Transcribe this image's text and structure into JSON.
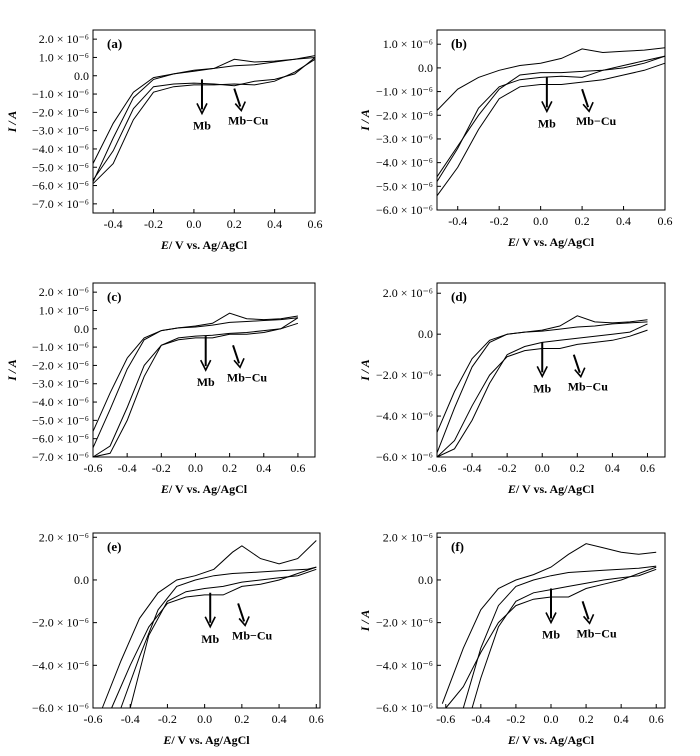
{
  "chart_data": [
    {
      "type": "line",
      "panel_label": "(a)",
      "xlabel_italic": "E",
      "xlabel_rest": "/ V vs. Ag/AgCl",
      "ylabel": "I / A",
      "xlim": [
        -0.5,
        0.6
      ],
      "ylim": [
        -7.5e-06,
        2.5e-06
      ],
      "x_ticks": [
        -0.4,
        -0.2,
        0.0,
        0.2,
        0.4,
        0.6
      ],
      "x_tick_labels": [
        "-0.4",
        "-0.2",
        "0.0",
        "0.2",
        "0.4",
        "0.6"
      ],
      "y_ticks": [
        2e-06,
        1e-06,
        0.0,
        -1e-06,
        -2e-06,
        -3e-06,
        -4e-06,
        -5e-06,
        -6e-06,
        -7e-06
      ],
      "y_tick_labels": [
        "2.0 × 10⁻⁶",
        "1.0 × 10⁻⁶",
        "0.0",
        "−1.0 × 10⁻⁶",
        "−2.0 × 10⁻⁶",
        "−3.0 × 10⁻⁶",
        "−4.0 × 10⁻⁶",
        "−5.0 × 10⁻⁶",
        "−6.0 × 10⁻⁶",
        "−7.0 × 10⁻⁶"
      ],
      "annotations": [
        "Mb",
        "Mb−Cu"
      ],
      "series": [
        {
          "x": [
            -0.5,
            -0.4,
            -0.3,
            -0.2,
            -0.1,
            0.0,
            0.1,
            0.2,
            0.3,
            0.4,
            0.5,
            0.6
          ],
          "values": [
            -5.8e-06,
            -3.4e-06,
            -1.2e-06,
            -2e-07,
            1e-07,
            2.5e-07,
            4e-07,
            9e-07,
            7.5e-07,
            8e-07,
            9e-07,
            1.1e-06
          ]
        },
        {
          "x": [
            0.6,
            0.5,
            0.4,
            0.3,
            0.2,
            0.1,
            0.0,
            -0.1,
            -0.2,
            -0.3,
            -0.4,
            -0.5
          ],
          "values": [
            9e-07,
            2e-07,
            -3e-07,
            -5e-07,
            -4.5e-07,
            -5e-07,
            -5e-07,
            -6e-07,
            -9e-07,
            -2.4e-06,
            -4.8e-06,
            -5.9e-06
          ]
        },
        {
          "x": [
            -0.5,
            -0.4,
            -0.3,
            -0.2,
            -0.1,
            0.0,
            0.1,
            0.2,
            0.3,
            0.4,
            0.5,
            0.6
          ],
          "values": [
            -4.8e-06,
            -2.6e-06,
            -9e-07,
            -1e-07,
            1e-07,
            3e-07,
            4e-07,
            5.5e-07,
            6e-07,
            7.5e-07,
            9e-07,
            1e-06
          ]
        },
        {
          "x": [
            0.6,
            0.5,
            0.4,
            0.3,
            0.2,
            0.1,
            0.0,
            -0.1,
            -0.2,
            -0.3,
            -0.4,
            -0.5
          ],
          "values": [
            1e-06,
            1e-07,
            -2e-07,
            -3e-07,
            -5.5e-07,
            -4.5e-07,
            -4e-07,
            -4.5e-07,
            -6e-07,
            -1.8e-06,
            -4.1e-06,
            -5.7e-06
          ]
        }
      ]
    },
    {
      "type": "line",
      "panel_label": "(b)",
      "xlabel_italic": "E",
      "xlabel_rest": "/ V vs. Ag/AgCl",
      "ylabel": "I / A",
      "xlim": [
        -0.5,
        0.6
      ],
      "ylim": [
        -6e-06,
        1.6e-06
      ],
      "x_ticks": [
        -0.4,
        -0.2,
        0.0,
        0.2,
        0.4,
        0.6
      ],
      "x_tick_labels": [
        "-0.4",
        "-0.2",
        "0.0",
        "0.2",
        "0.4",
        "0.6"
      ],
      "y_ticks": [
        1e-06,
        0.0,
        -1e-06,
        -2e-06,
        -3e-06,
        -4e-06,
        -5e-06,
        -6e-06
      ],
      "y_tick_labels": [
        "1.0 × 10⁻⁶",
        "0.0",
        "−1.0 × 10⁻⁶",
        "−2.0 × 10⁻⁶",
        "−3.0 × 10⁻⁶",
        "−4.0 × 10⁻⁶",
        "−5.0 × 10⁻⁶",
        "−6.0 × 10⁻⁶"
      ],
      "annotations": [
        "Mb",
        "Mb−Cu"
      ],
      "series": [
        {
          "x": [
            -0.5,
            -0.4,
            -0.3,
            -0.2,
            -0.1,
            0.0,
            0.1,
            0.2,
            0.3,
            0.4,
            0.5,
            0.6
          ],
          "values": [
            -1.8e-06,
            -9e-07,
            -4e-07,
            -1e-07,
            1e-07,
            2e-07,
            4e-07,
            8e-07,
            6.5e-07,
            7e-07,
            7.5e-07,
            8.5e-07
          ]
        },
        {
          "x": [
            0.6,
            0.5,
            0.4,
            0.3,
            0.2,
            0.1,
            0.0,
            -0.1,
            -0.2,
            -0.3,
            -0.4,
            -0.5
          ],
          "values": [
            2e-07,
            -1e-07,
            -3e-07,
            -5e-07,
            -6e-07,
            -7e-07,
            -7e-07,
            -8e-07,
            -1.3e-06,
            -2.6e-06,
            -4.2e-06,
            -5.4e-06
          ]
        },
        {
          "x": [
            -0.5,
            -0.4,
            -0.3,
            -0.2,
            -0.1,
            0.0,
            0.1,
            0.2,
            0.3,
            0.4,
            0.5,
            0.6
          ],
          "values": [
            -4.6e-06,
            -3.3e-06,
            -2e-06,
            -9e-07,
            -3e-07,
            -2e-07,
            -2e-07,
            -1.5e-07,
            -1e-07,
            0.0,
            2e-07,
            5e-07
          ]
        },
        {
          "x": [
            0.6,
            0.5,
            0.4,
            0.3,
            0.2,
            0.1,
            0.0,
            -0.1,
            -0.2,
            -0.3,
            -0.4,
            -0.5
          ],
          "values": [
            5e-07,
            3e-07,
            1e-07,
            -1e-07,
            -4e-07,
            -3.5e-07,
            -4e-07,
            -5e-07,
            -8e-07,
            -1.7e-06,
            -3.4e-06,
            -4.8e-06
          ]
        }
      ]
    },
    {
      "type": "line",
      "panel_label": "(c)",
      "xlabel_italic": "E",
      "xlabel_rest": "/ V vs. Ag/AgCl",
      "ylabel": "I / A",
      "xlim": [
        -0.6,
        0.7
      ],
      "ylim": [
        -7e-06,
        2.5e-06
      ],
      "x_ticks": [
        -0.6,
        -0.4,
        -0.2,
        0.0,
        0.2,
        0.4,
        0.6
      ],
      "x_tick_labels": [
        "-0.6",
        "-0.4",
        "-0.2",
        "0.0",
        "0.2",
        "0.4",
        "0.6"
      ],
      "y_ticks": [
        2e-06,
        1e-06,
        0.0,
        -1e-06,
        -2e-06,
        -3e-06,
        -4e-06,
        -5e-06,
        -6e-06,
        -7e-06
      ],
      "y_tick_labels": [
        "2.0 × 10⁻⁶",
        "1.0 × 10⁻⁶",
        "0.0",
        "−1.0 × 10⁻⁶",
        "−2.0 × 10⁻⁶",
        "−3.0 × 10⁻⁶",
        "−4.0 × 10⁻⁶",
        "−5.0 × 10⁻⁶",
        "−6.0 × 10⁻⁶",
        "−7.0 × 10⁻⁶"
      ],
      "annotations": [
        "Mb",
        "Mb−Cu"
      ],
      "series": [
        {
          "x": [
            -0.6,
            -0.5,
            -0.4,
            -0.3,
            -0.2,
            -0.1,
            0.0,
            0.1,
            0.2,
            0.3,
            0.4,
            0.5,
            0.6
          ],
          "values": [
            -6.5e-06,
            -4.4e-06,
            -2.2e-06,
            -6e-07,
            -1e-07,
            5e-08,
            1.5e-07,
            3e-07,
            8.5e-07,
            5.5e-07,
            5e-07,
            5.5e-07,
            7e-07
          ]
        },
        {
          "x": [
            0.6,
            0.5,
            0.4,
            0.3,
            0.2,
            0.1,
            0.0,
            -0.1,
            -0.2,
            -0.3,
            -0.4,
            -0.5,
            -0.6
          ],
          "values": [
            3e-07,
            0.0,
            -2e-07,
            -3e-07,
            -3e-07,
            -5e-07,
            -5e-07,
            -6e-07,
            -9e-07,
            -2e-06,
            -4.3e-06,
            -6.4e-06,
            -7e-06
          ]
        },
        {
          "x": [
            -0.6,
            -0.5,
            -0.4,
            -0.3,
            -0.2,
            -0.1,
            0.0,
            0.1,
            0.2,
            0.3,
            0.4,
            0.5,
            0.6
          ],
          "values": [
            -5.6e-06,
            -3.5e-06,
            -1.6e-06,
            -5e-07,
            -1e-07,
            5e-08,
            1e-07,
            2e-07,
            3.5e-07,
            4e-07,
            4.5e-07,
            5e-07,
            6e-07
          ]
        },
        {
          "x": [
            0.6,
            0.5,
            0.4,
            0.3,
            0.2,
            0.1,
            0.0,
            -0.1,
            -0.2,
            -0.3,
            -0.4,
            -0.5,
            -0.6
          ],
          "values": [
            6e-07,
            0.0,
            -1e-07,
            -2e-07,
            -2.5e-07,
            -3.5e-07,
            -4e-07,
            -5e-07,
            -9e-07,
            -2.6e-06,
            -5e-06,
            -6.8e-06,
            -7e-06
          ]
        }
      ]
    },
    {
      "type": "line",
      "panel_label": "(d)",
      "xlabel_italic": "E",
      "xlabel_rest": "/ V vs. Ag/AgCl",
      "ylabel": "I / A",
      "xlim": [
        -0.6,
        0.7
      ],
      "ylim": [
        -6e-06,
        2.5e-06
      ],
      "x_ticks": [
        -0.6,
        -0.4,
        -0.2,
        0.0,
        0.2,
        0.4,
        0.6
      ],
      "x_tick_labels": [
        "-0.6",
        "-0.4",
        "-0.2",
        "0.0",
        "0.2",
        "0.4",
        "0.6"
      ],
      "y_ticks": [
        2e-06,
        0.0,
        -2e-06,
        -4e-06,
        -6e-06
      ],
      "y_tick_labels": [
        "2.0 × 10⁻⁶",
        "0.0",
        "−2.0 × 10⁻⁶",
        "−4.0 × 10⁻⁶",
        "−6.0 × 10⁻⁶"
      ],
      "annotations": [
        "Mb",
        "Mb−Cu"
      ],
      "series": [
        {
          "x": [
            -0.6,
            -0.5,
            -0.4,
            -0.3,
            -0.2,
            -0.1,
            0.0,
            0.1,
            0.2,
            0.3,
            0.4,
            0.5,
            0.6
          ],
          "values": [
            -5.8e-06,
            -3.6e-06,
            -1.6e-06,
            -4e-07,
            0.0,
            1e-07,
            2e-07,
            4e-07,
            9e-07,
            6e-07,
            5.5e-07,
            6e-07,
            7e-07
          ]
        },
        {
          "x": [
            0.6,
            0.5,
            0.4,
            0.3,
            0.2,
            0.1,
            0.0,
            -0.1,
            -0.2,
            -0.3,
            -0.4,
            -0.5,
            -0.6
          ],
          "values": [
            2e-07,
            -1e-07,
            -3e-07,
            -4e-07,
            -5e-07,
            -7e-07,
            -7e-07,
            -8e-07,
            -1.1e-06,
            -2e-06,
            -3.5e-06,
            -5.2e-06,
            -6e-06
          ]
        },
        {
          "x": [
            -0.6,
            -0.5,
            -0.4,
            -0.3,
            -0.2,
            -0.1,
            0.0,
            0.1,
            0.2,
            0.3,
            0.4,
            0.5,
            0.6
          ],
          "values": [
            -4.8e-06,
            -2.8e-06,
            -1.2e-06,
            -3e-07,
            0.0,
            1e-07,
            1.5e-07,
            2.5e-07,
            3.5e-07,
            4e-07,
            5e-07,
            5.5e-07,
            6e-07
          ]
        },
        {
          "x": [
            0.6,
            0.5,
            0.4,
            0.3,
            0.2,
            0.1,
            0.0,
            -0.1,
            -0.2,
            -0.3,
            -0.4,
            -0.5,
            -0.6
          ],
          "values": [
            5e-07,
            1e-07,
            0.0,
            -1e-07,
            -2e-07,
            -3e-07,
            -4e-07,
            -6e-07,
            -1e-06,
            -2.4e-06,
            -4.2e-06,
            -5.6e-06,
            -6e-06
          ]
        }
      ]
    },
    {
      "type": "line",
      "panel_label": "(e)",
      "xlabel_italic": "E",
      "xlabel_rest": "/ V vs. Ag/AgCl",
      "ylabel": "",
      "xlim": [
        -0.6,
        0.62
      ],
      "ylim": [
        -6e-06,
        2.2e-06
      ],
      "x_ticks": [
        -0.6,
        -0.4,
        -0.2,
        0.0,
        0.2,
        0.4,
        0.6
      ],
      "x_tick_labels": [
        "-0.6",
        "-0.4",
        "-0.2",
        "0.0",
        "0.2",
        "0.4",
        "0.6"
      ],
      "y_ticks": [
        2e-06,
        0.0,
        -2e-06,
        -4e-06,
        -6e-06
      ],
      "y_tick_labels": [
        "2.0 × 10⁻⁶",
        "0.0",
        "−2.0 × 10⁻⁶",
        "−4.0 × 10⁻⁶",
        "−6.0 × 10⁻⁶"
      ],
      "annotations": [
        "Mb",
        "Mb−Cu"
      ],
      "series": [
        {
          "x": [
            -0.55,
            -0.45,
            -0.35,
            -0.25,
            -0.15,
            -0.05,
            0.05,
            0.15,
            0.2,
            0.3,
            0.4,
            0.5,
            0.6
          ],
          "values": [
            -6e-06,
            -3.8e-06,
            -1.8e-06,
            -6e-07,
            0.0,
            2e-07,
            5e-07,
            1.3e-06,
            1.6e-06,
            1e-06,
            7.5e-07,
            1e-06,
            1.85e-06
          ]
        },
        {
          "x": [
            0.6,
            0.5,
            0.4,
            0.3,
            0.2,
            0.1,
            0.0,
            -0.1,
            -0.2,
            -0.3,
            -0.4,
            -0.5
          ],
          "values": [
            6e-07,
            3e-07,
            0.0,
            -2e-07,
            -3e-07,
            -7e-07,
            -7e-07,
            -8e-07,
            -1.1e-06,
            -2.2e-06,
            -4e-06,
            -6e-06
          ]
        },
        {
          "x": [
            -0.45,
            -0.35,
            -0.25,
            -0.15,
            -0.05,
            0.05,
            0.15,
            0.25,
            0.35,
            0.45,
            0.55,
            0.6
          ],
          "values": [
            -6e-06,
            -3.6e-06,
            -1.4e-06,
            -3e-07,
            0.0,
            2e-07,
            3e-07,
            3.5e-07,
            4e-07,
            4.5e-07,
            5e-07,
            6e-07
          ]
        },
        {
          "x": [
            0.6,
            0.5,
            0.4,
            0.3,
            0.2,
            0.1,
            0.0,
            -0.1,
            -0.2,
            -0.3,
            -0.4
          ],
          "values": [
            5e-07,
            2e-07,
            1e-07,
            0.0,
            -1e-07,
            -3e-07,
            -4e-07,
            -5.5e-07,
            -1e-06,
            -2.6e-06,
            -6e-06
          ]
        }
      ]
    },
    {
      "type": "line",
      "panel_label": "(f)",
      "xlabel_italic": "E",
      "xlabel_rest": "/ V vs. Ag/AgCl",
      "ylabel": "I / A",
      "xlim": [
        -0.65,
        0.65
      ],
      "ylim": [
        -6e-06,
        2.2e-06
      ],
      "x_ticks": [
        -0.6,
        -0.4,
        -0.2,
        0.0,
        0.2,
        0.4,
        0.6
      ],
      "x_tick_labels": [
        "-0.6",
        "-0.4",
        "-0.2",
        "0.0",
        "0.2",
        "0.4",
        "0.6"
      ],
      "y_ticks": [
        2e-06,
        0.0,
        -2e-06,
        -4e-06,
        -6e-06
      ],
      "y_tick_labels": [
        "2.0 × 10⁻⁶",
        "0.0",
        "−2.0 × 10⁻⁶",
        "−4.0 × 10⁻⁶",
        "−6.0 × 10⁻⁶"
      ],
      "annotations": [
        "Mb",
        "Mb−Cu"
      ],
      "series": [
        {
          "x": [
            -0.62,
            -0.5,
            -0.4,
            -0.3,
            -0.2,
            -0.1,
            0.0,
            0.1,
            0.2,
            0.3,
            0.4,
            0.5,
            0.6
          ],
          "values": [
            -5.8e-06,
            -3.2e-06,
            -1.4e-06,
            -4e-07,
            0.0,
            2.5e-07,
            6e-07,
            1.2e-06,
            1.7e-06,
            1.5e-06,
            1.3e-06,
            1.2e-06,
            1.3e-06
          ]
        },
        {
          "x": [
            0.6,
            0.5,
            0.4,
            0.3,
            0.2,
            0.1,
            0.0,
            -0.1,
            -0.2,
            -0.3,
            -0.4,
            -0.5,
            -0.6
          ],
          "values": [
            6e-07,
            3e-07,
            0.0,
            -2e-07,
            -4e-07,
            -8e-07,
            -8e-07,
            -9e-07,
            -1.2e-06,
            -2e-06,
            -3.4e-06,
            -5e-06,
            -6e-06
          ]
        },
        {
          "x": [
            -0.5,
            -0.4,
            -0.3,
            -0.2,
            -0.1,
            0.0,
            0.1,
            0.2,
            0.3,
            0.4,
            0.5,
            0.6
          ],
          "values": [
            -6e-06,
            -3.2e-06,
            -1.2e-06,
            -3e-07,
            0.0,
            2e-07,
            3.5e-07,
            4e-07,
            4.5e-07,
            5e-07,
            5.5e-07,
            6.5e-07
          ]
        },
        {
          "x": [
            0.6,
            0.5,
            0.4,
            0.3,
            0.2,
            0.1,
            0.0,
            -0.1,
            -0.2,
            -0.3,
            -0.4,
            -0.45
          ],
          "values": [
            5e-07,
            2e-07,
            1e-07,
            0.0,
            -1.5e-07,
            -3e-07,
            -4.5e-07,
            -6e-07,
            -1e-06,
            -2.2e-06,
            -4.6e-06,
            -6e-06
          ]
        }
      ]
    }
  ]
}
